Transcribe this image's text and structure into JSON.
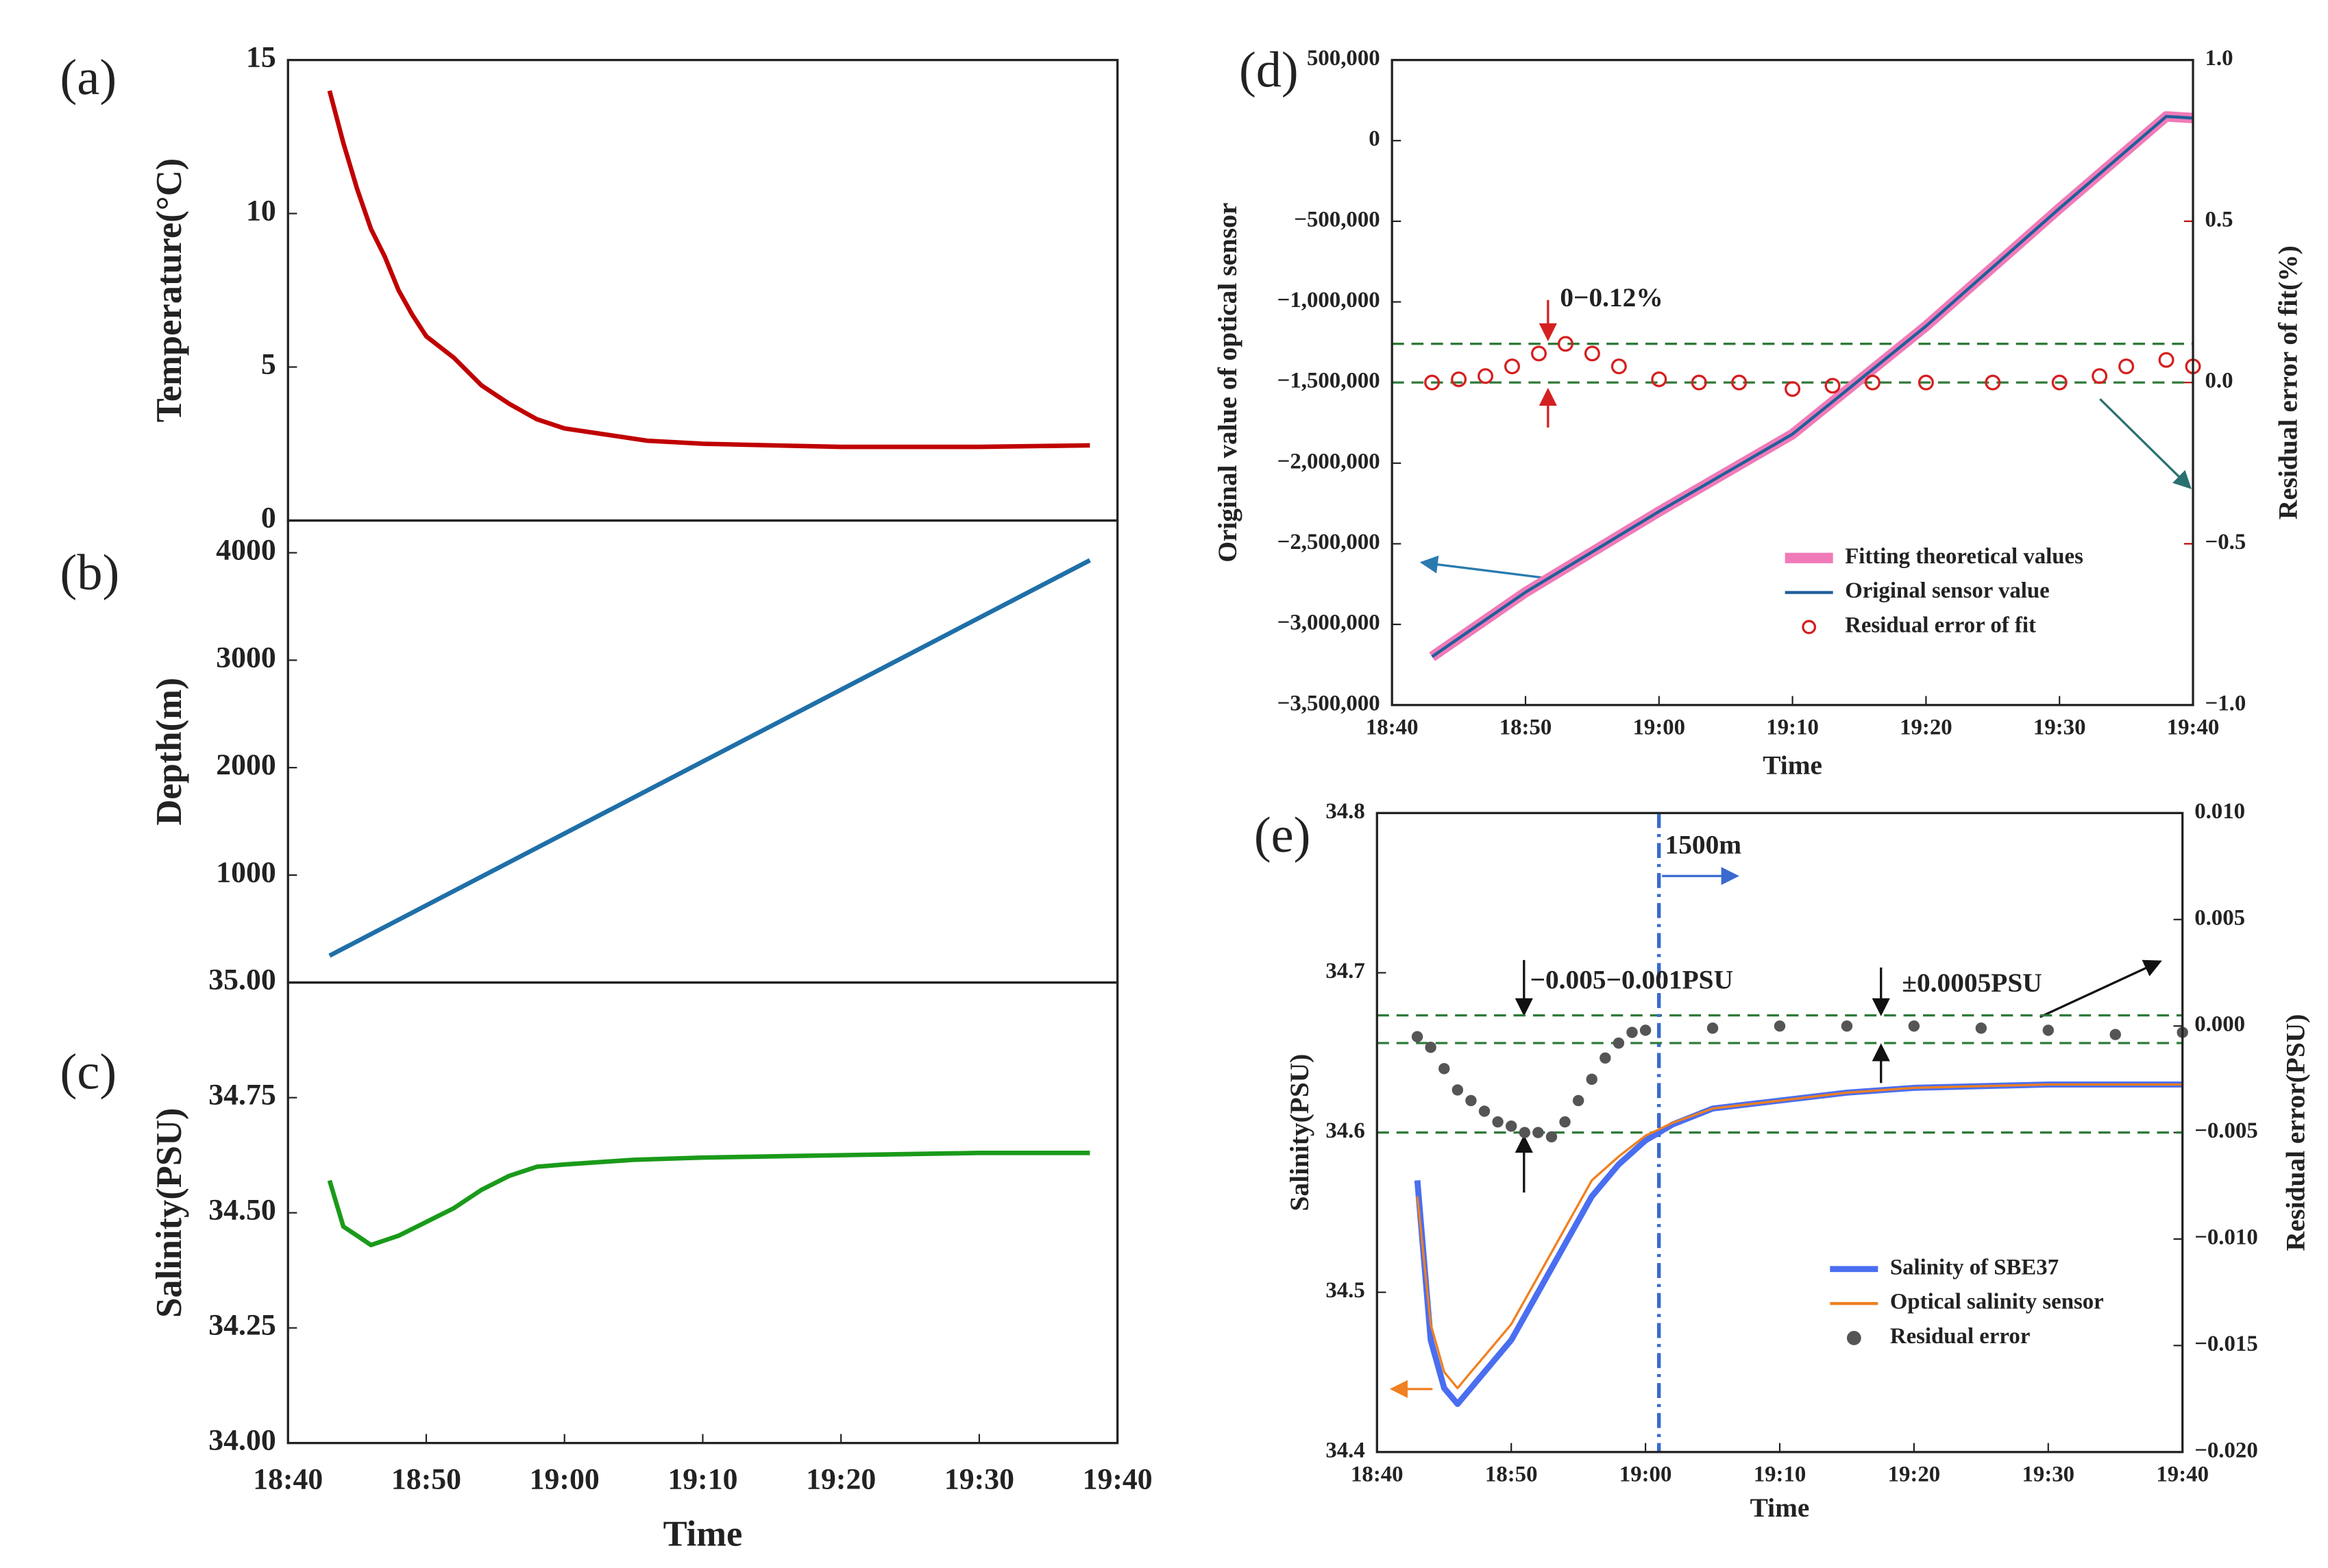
{
  "chart_data": [
    {
      "type": "line",
      "label": "(a)",
      "ylabel": "Temperature(°C)",
      "color": "#c00000",
      "x": [
        "18:43",
        "18:44",
        "18:45",
        "18:46",
        "18:47",
        "18:48",
        "18:49",
        "18:50",
        "18:52",
        "18:54",
        "18:56",
        "18:58",
        "19:00",
        "19:03",
        "19:06",
        "19:10",
        "19:15",
        "19:20",
        "19:30",
        "19:38"
      ],
      "values": [
        14,
        12.3,
        10.8,
        9.5,
        8.6,
        7.5,
        6.7,
        6.0,
        5.3,
        4.4,
        3.8,
        3.3,
        3.0,
        2.8,
        2.6,
        2.5,
        2.45,
        2.4,
        2.4,
        2.45
      ],
      "xlim": [
        "18:40",
        "19:40"
      ],
      "ylim": [
        0,
        15
      ],
      "yticks": [
        0,
        5,
        10,
        15
      ]
    },
    {
      "type": "line",
      "label": "(b)",
      "ylabel": "Depth(m)",
      "color": "#1f6fa8",
      "x": [
        "18:43",
        "19:38"
      ],
      "values": [
        250,
        3930
      ],
      "xlim": [
        "18:40",
        "19:40"
      ],
      "ylim": [
        0,
        4300
      ],
      "yticks": [
        1000,
        2000,
        3000,
        4000
      ]
    },
    {
      "type": "line",
      "label": "(c)",
      "ylabel": "Salinity(PSU)",
      "xlabel": "Time",
      "color": "#1a9a1a",
      "x": [
        "18:43",
        "18:44",
        "18:45",
        "18:46",
        "18:47",
        "18:48",
        "18:50",
        "18:52",
        "18:54",
        "18:56",
        "18:58",
        "19:00",
        "19:05",
        "19:10",
        "19:20",
        "19:30",
        "19:38"
      ],
      "values": [
        34.57,
        34.47,
        34.45,
        34.43,
        34.44,
        34.45,
        34.48,
        34.51,
        34.55,
        34.58,
        34.6,
        34.605,
        34.615,
        34.62,
        34.625,
        34.63,
        34.63
      ],
      "xlim": [
        "18:40",
        "19:40"
      ],
      "xticks": [
        "18:40",
        "18:50",
        "19:00",
        "19:10",
        "19:20",
        "19:30",
        "19:40"
      ],
      "ylim": [
        34,
        35
      ],
      "yticks": [
        {
          "value": 34,
          "label": "34.00"
        },
        {
          "value": 34.25,
          "label": "34.25"
        },
        {
          "value": 34.5,
          "label": "34.50"
        },
        {
          "value": 34.75,
          "label": "34.75"
        },
        {
          "value": 35,
          "label": "35.00"
        }
      ]
    },
    {
      "type": "line",
      "label": "(d)",
      "ylabel": "Original value of optical sensor",
      "y2label": "Residual error of fit(%)",
      "xlabel": "Time",
      "xlim": [
        "18:40",
        "19:40"
      ],
      "xticks": [
        "18:40",
        "18:50",
        "19:00",
        "19:10",
        "19:20",
        "19:30",
        "19:40"
      ],
      "ylim": [
        -3500000,
        500000
      ],
      "yticks": [
        {
          "value": 500000,
          "label": "500,000"
        },
        0,
        {
          "value": -500000,
          "label": "−500,000"
        },
        {
          "value": -1000000,
          "label": "−1,000,000"
        },
        {
          "value": -1500000,
          "label": "−1,500,000"
        },
        {
          "value": -2000000,
          "label": "−2,000,000"
        },
        {
          "value": -2500000,
          "label": "−2,500,000"
        },
        {
          "value": -3000000,
          "label": "−3,000,000"
        },
        {
          "value": -3500000,
          "label": "−3,500,000"
        }
      ],
      "y2lim": [
        -1,
        1
      ],
      "y2ticks": [
        {
          "value": 1,
          "label": "1.0"
        },
        {
          "value": 0.5,
          "label": "0.5"
        },
        {
          "value": 0,
          "label": "0.0"
        },
        {
          "value": -0.5,
          "label": "−0.5"
        },
        {
          "value": -1,
          "label": "−1.0"
        }
      ],
      "y2_reference_lines": [
        0.12,
        0
      ],
      "annotations": [
        "0−0.12%"
      ],
      "legend": "lower right",
      "series": [
        {
          "name": "Fitting theoretical values",
          "color": "#f07ab8",
          "style": "line",
          "width": 7,
          "x": [
            "18:43",
            "18:50",
            "19:00",
            "19:10",
            "19:20",
            "19:30",
            "19:38",
            "19:40"
          ],
          "values": [
            -3200000,
            -2800000,
            -2300000,
            -1820000,
            -1150000,
            -420000,
            150000,
            140000
          ]
        },
        {
          "name": "Original sensor value",
          "color": "#1f5f9a",
          "style": "line",
          "width": 2,
          "x": [
            "18:43",
            "18:50",
            "19:00",
            "19:10",
            "19:20",
            "19:30",
            "19:38",
            "19:40"
          ],
          "values": [
            -3200000,
            -2800000,
            -2300000,
            -1820000,
            -1150000,
            -420000,
            150000,
            140000
          ]
        },
        {
          "name": "Residual error of fit",
          "color": "#d42020",
          "style": "scatter",
          "axis": "y2",
          "x": [
            "18:43",
            "18:45",
            "18:47",
            "18:49",
            "18:51",
            "18:53",
            "18:55",
            "18:57",
            "19:00",
            "19:03",
            "19:06",
            "19:10",
            "19:13",
            "19:16",
            "19:20",
            "19:25",
            "19:30",
            "19:33",
            "19:35",
            "19:38",
            "19:40"
          ],
          "values": [
            0,
            0.01,
            0.02,
            0.05,
            0.09,
            0.12,
            0.09,
            0.05,
            0.01,
            0.0,
            0.0,
            -0.02,
            -0.01,
            0.0,
            0.0,
            0.0,
            0.0,
            0.02,
            0.05,
            0.07,
            0.05
          ]
        }
      ]
    },
    {
      "type": "line",
      "label": "(e)",
      "ylabel": "Salinity(PSU)",
      "y2label": "Residual error(PSU)",
      "xlabel": "Time",
      "xlim": [
        "18:40",
        "19:40"
      ],
      "xticks": [
        "18:40",
        "18:50",
        "19:00",
        "19:10",
        "19:20",
        "19:30",
        "19:40"
      ],
      "ylim": [
        34.4,
        34.8
      ],
      "yticks": [
        34.4,
        34.5,
        34.6,
        34.7,
        34.8
      ],
      "y2lim": [
        -0.02,
        0.01
      ],
      "y2ticks": [
        {
          "value": 0.01,
          "label": "0.010"
        },
        {
          "value": 0.005,
          "label": "0.005"
        },
        {
          "value": 0,
          "label": "0.000"
        },
        {
          "value": -0.005,
          "label": "−0.005"
        },
        {
          "value": -0.01,
          "label": "−0.010"
        },
        {
          "value": -0.015,
          "label": "−0.015"
        },
        {
          "value": -0.02,
          "label": "−0.020"
        }
      ],
      "y2_reference_lines": [
        0.0005,
        -0.0008,
        -0.005
      ],
      "vline": "19:01",
      "annotations": [
        "1500m",
        "−0.005−0.001PSU",
        "±0.0005PSU"
      ],
      "legend": "lower right",
      "series": [
        {
          "name": "Salinity of SBE37",
          "color": "#4a6ef0",
          "style": "line",
          "width": 4,
          "x": [
            "18:43",
            "18:44",
            "18:45",
            "18:46",
            "18:47",
            "18:48",
            "18:50",
            "18:52",
            "18:54",
            "18:56",
            "18:58",
            "19:00",
            "19:02",
            "19:05",
            "19:10",
            "19:15",
            "19:20",
            "19:30",
            "19:40"
          ],
          "values": [
            34.57,
            34.47,
            34.44,
            34.43,
            34.44,
            34.45,
            34.47,
            34.5,
            34.53,
            34.56,
            34.58,
            34.595,
            34.605,
            34.615,
            34.62,
            34.625,
            34.628,
            34.63,
            34.63
          ]
        },
        {
          "name": "Optical salinity sensor",
          "color": "#f08020",
          "style": "line",
          "width": 1.5,
          "x": [
            "18:43",
            "18:44",
            "18:45",
            "18:46",
            "18:47",
            "18:48",
            "18:50",
            "18:52",
            "18:54",
            "18:56",
            "18:58",
            "19:00",
            "19:02",
            "19:05",
            "19:10",
            "19:15",
            "19:20",
            "19:30",
            "19:40"
          ],
          "values": [
            34.56,
            34.48,
            34.45,
            34.44,
            34.45,
            34.46,
            34.48,
            34.51,
            34.54,
            34.57,
            34.585,
            34.598,
            34.606,
            34.615,
            34.62,
            34.625,
            34.628,
            34.63,
            34.63
          ]
        },
        {
          "name": "Residual error",
          "color": "#555555",
          "style": "scatter",
          "axis": "y2",
          "x": [
            "18:43",
            "18:44",
            "18:45",
            "18:46",
            "18:47",
            "18:48",
            "18:49",
            "18:50",
            "18:51",
            "18:52",
            "18:53",
            "18:54",
            "18:55",
            "18:56",
            "18:57",
            "18:58",
            "18:59",
            "19:00",
            "19:05",
            "19:10",
            "19:15",
            "19:20",
            "19:25",
            "19:30",
            "19:35",
            "19:40"
          ],
          "values": [
            -0.0005,
            -0.001,
            -0.002,
            -0.003,
            -0.0035,
            -0.004,
            -0.0045,
            -0.0047,
            -0.005,
            -0.005,
            -0.0052,
            -0.0045,
            -0.0035,
            -0.0025,
            -0.0015,
            -0.0008,
            -0.0003,
            -0.0002,
            -0.0001,
            0,
            0,
            0,
            -0.0001,
            -0.0002,
            -0.0004,
            -0.0003
          ]
        }
      ]
    }
  ]
}
